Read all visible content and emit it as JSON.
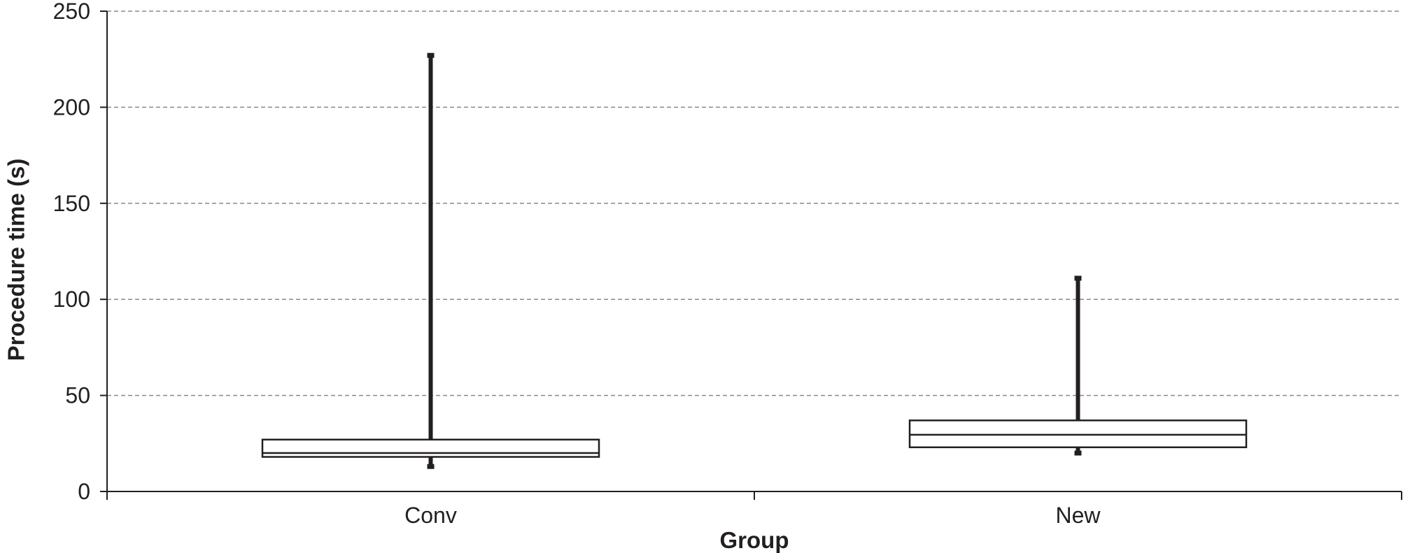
{
  "chart_data": {
    "type": "box",
    "title": "",
    "xlabel": "Group",
    "ylabel": "Procedure time (s)",
    "ylim": [
      0,
      250
    ],
    "yticks": [
      0,
      50,
      100,
      150,
      200,
      250
    ],
    "grid": true,
    "categories": [
      "Conv",
      "New"
    ],
    "boxes": [
      {
        "category": "Conv",
        "min": 13,
        "q1": 18,
        "median": 20,
        "q3": 27,
        "max": 227
      },
      {
        "category": "New",
        "min": 20,
        "q1": 23,
        "median": 29.5,
        "q3": 37,
        "max": 111
      }
    ],
    "colors": {
      "ink": "#231f20",
      "grid": "#8a8a8a",
      "box_fill": "#ffffff"
    }
  }
}
